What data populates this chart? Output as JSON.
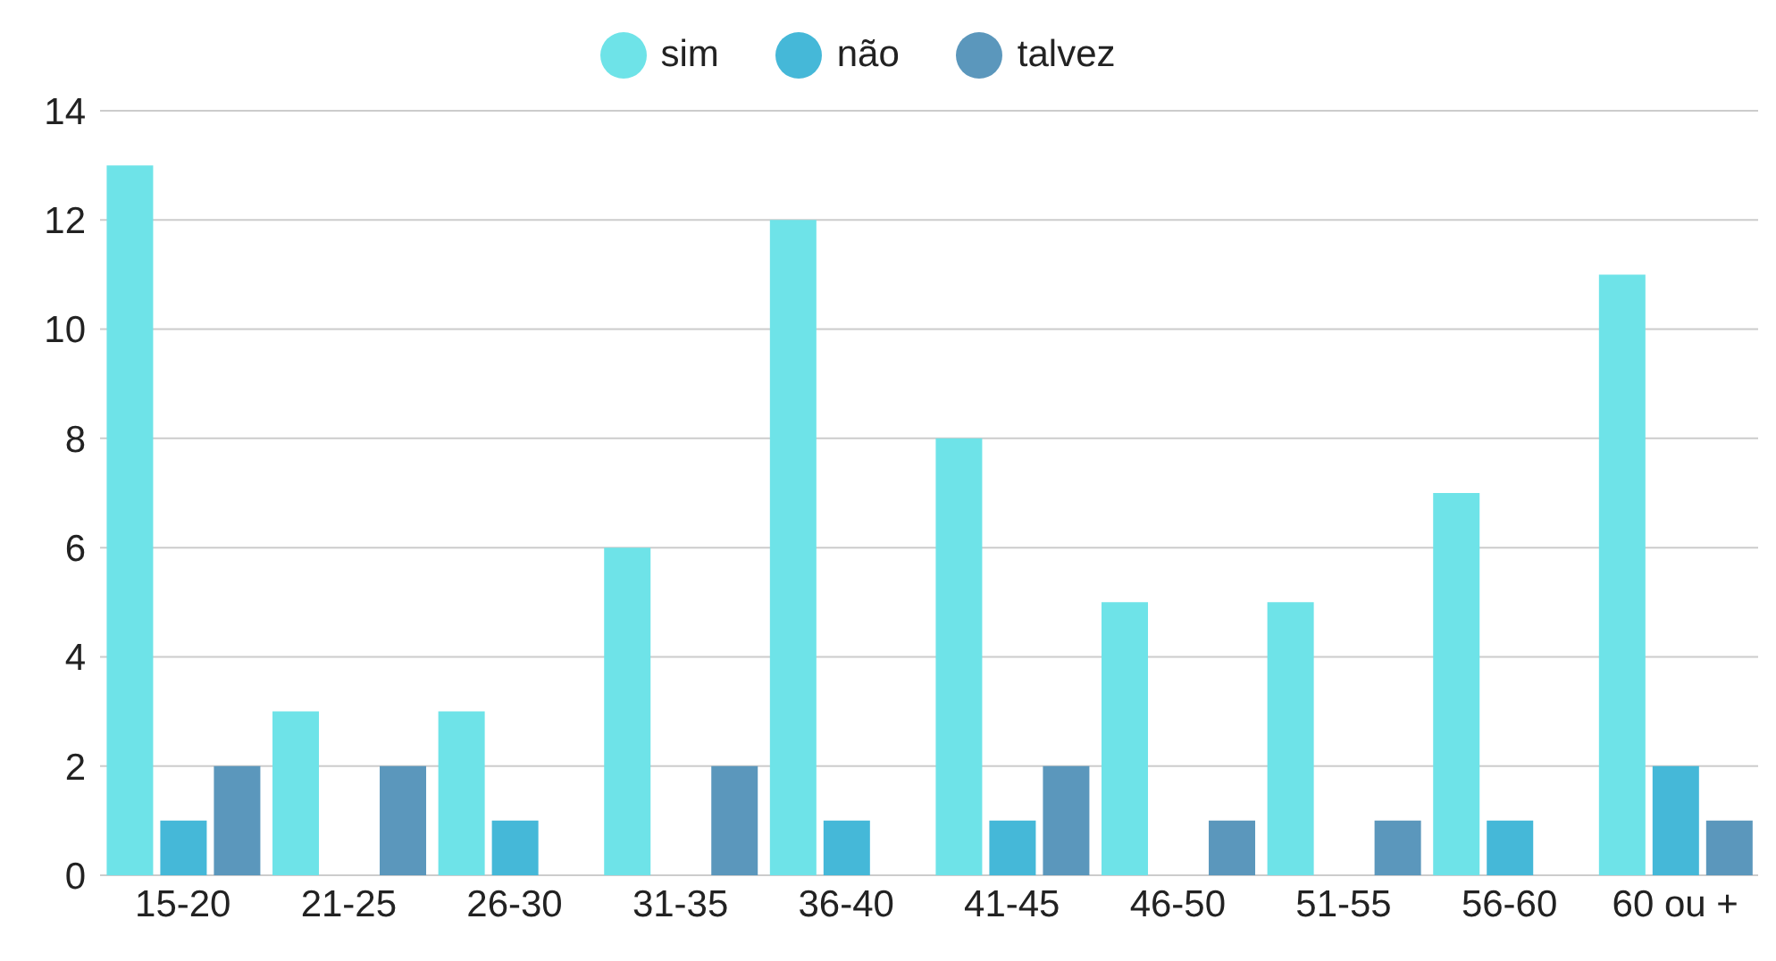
{
  "chart_data": {
    "type": "bar",
    "categories": [
      "15-20",
      "21-25",
      "26-30",
      "31-35",
      "36-40",
      "41-45",
      "46-50",
      "51-55",
      "56-60",
      "60 ou +"
    ],
    "series": [
      {
        "name": "sim",
        "color": "#6ee3e8",
        "values": [
          13,
          3,
          3,
          6,
          12,
          8,
          5,
          5,
          7,
          11
        ]
      },
      {
        "name": "não",
        "color": "#45b8d8",
        "values": [
          1,
          0,
          1,
          0,
          1,
          1,
          0,
          0,
          1,
          2
        ]
      },
      {
        "name": "talvez",
        "color": "#5b97bc",
        "values": [
          2,
          2,
          0,
          2,
          0,
          2,
          1,
          1,
          0,
          1
        ]
      }
    ],
    "ylim": [
      0,
      14
    ],
    "yticks": [
      0,
      2,
      4,
      6,
      8,
      10,
      12,
      14
    ],
    "grid": "y",
    "legend": "top"
  }
}
